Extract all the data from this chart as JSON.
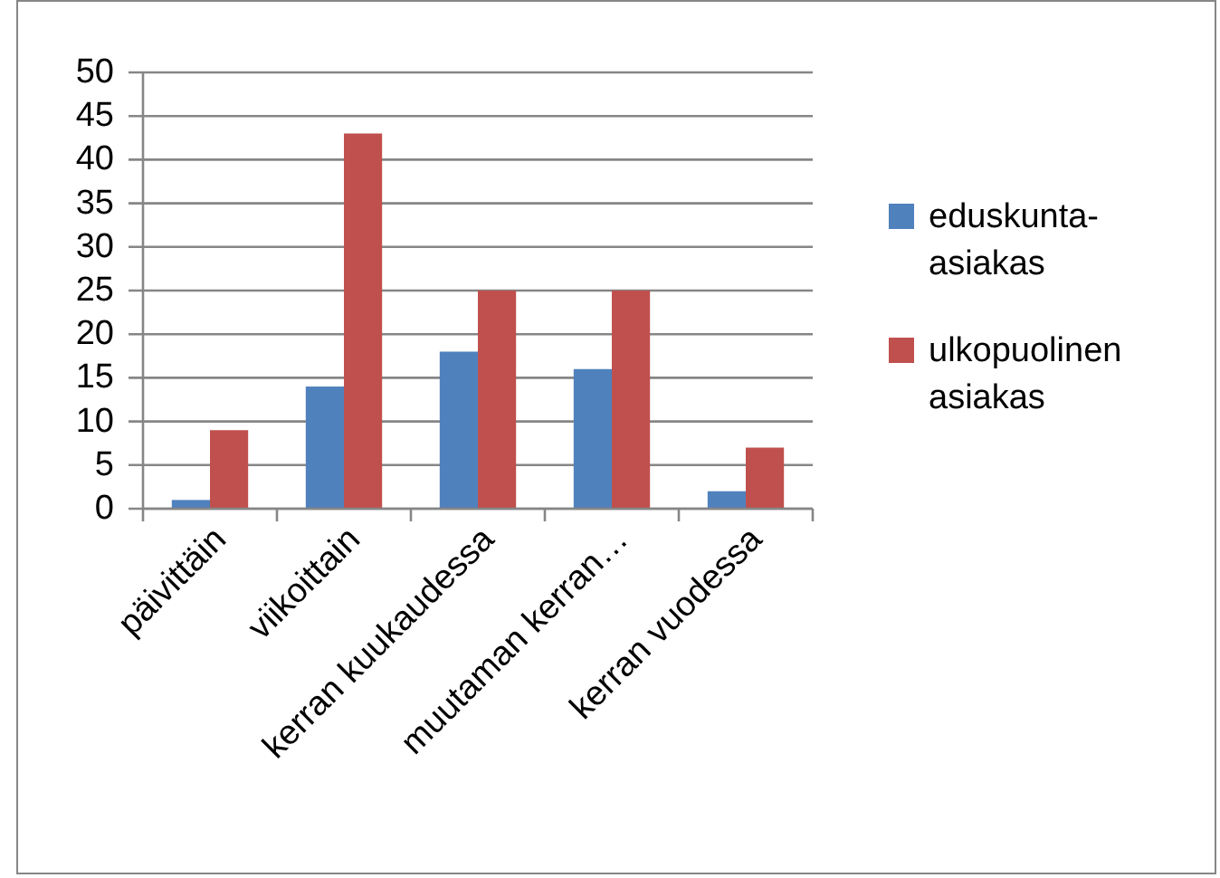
{
  "chart_data": {
    "type": "bar",
    "categories": [
      "päivittäin",
      "viikoittain",
      "kerran kuukaudessa",
      "muutaman kerran…",
      "kerran vuodessa"
    ],
    "series": [
      {
        "name": "eduskunta-asiakas",
        "color": "#4f81bd",
        "values": [
          1,
          14,
          18,
          16,
          2
        ]
      },
      {
        "name": "ulkopuolinen asiakas",
        "color": "#c0504d",
        "values": [
          9,
          43,
          25,
          25,
          7
        ]
      }
    ],
    "ylim": [
      0,
      50
    ],
    "yticks": [
      0,
      5,
      10,
      15,
      20,
      25,
      30,
      35,
      40,
      45,
      50
    ],
    "grid": "y",
    "legend": "right"
  }
}
